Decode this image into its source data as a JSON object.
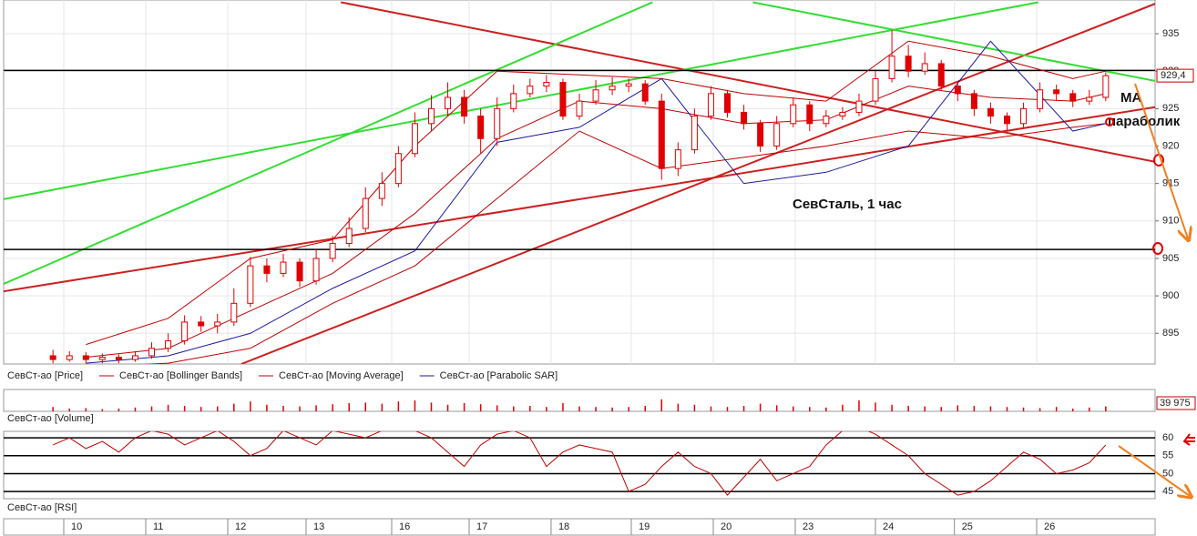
{
  "chart_data": [
    {
      "type": "candlestick",
      "xlim": [
        0,
        140
      ],
      "ylim": [
        890.9,
        939.5
      ],
      "yticks": [
        895,
        900,
        905,
        910,
        915,
        920,
        925,
        930,
        935
      ],
      "xticks": [
        {
          "value": 7.31,
          "label": "10"
        },
        {
          "value": 17.28,
          "label": "11"
        },
        {
          "value": 27.25,
          "label": "12"
        },
        {
          "value": 36.77,
          "label": "13"
        },
        {
          "value": 47.18,
          "label": "16"
        },
        {
          "value": 56.6,
          "label": "17"
        },
        {
          "value": 66.56,
          "label": "18"
        },
        {
          "value": 76.31,
          "label": "19"
        },
        {
          "value": 86.28,
          "label": "20"
        },
        {
          "value": 96.25,
          "label": "23"
        },
        {
          "value": 106.0,
          "label": "24"
        },
        {
          "value": 115.6,
          "label": "25"
        },
        {
          "value": 125.6,
          "label": "26"
        }
      ],
      "grid": true,
      "candles": {
        "name": "СевСт-ао [Price]",
        "color": "#e00000",
        "x": [
          6,
          8,
          10,
          12,
          14,
          16,
          18,
          20,
          22,
          24,
          26,
          28,
          30,
          32,
          34,
          36,
          38,
          40,
          42,
          44,
          46,
          48,
          50,
          52,
          54,
          56,
          58,
          60,
          62,
          64,
          66,
          68,
          70,
          72,
          74,
          76,
          78,
          80,
          82,
          84,
          86,
          88,
          90,
          92,
          94,
          96,
          98,
          100,
          102,
          104,
          106,
          108,
          110,
          112,
          114,
          116,
          118,
          120,
          122,
          124,
          126,
          128,
          130,
          132,
          134
        ],
        "open": [
          892,
          891.5,
          892,
          891.5,
          891.8,
          891.5,
          892,
          893,
          894,
          896.5,
          896,
          896.5,
          899,
          904,
          903,
          904.5,
          902,
          905,
          907,
          909,
          913,
          915,
          919,
          923,
          925,
          926.5,
          924,
          921,
          925,
          927,
          928,
          928.5,
          924,
          926,
          927.5,
          928,
          928.3,
          926,
          917,
          919.5,
          924,
          927,
          924.5,
          923,
          920,
          923,
          925.5,
          923,
          924,
          924.5,
          926,
          929,
          932,
          930,
          931,
          928,
          927,
          925,
          924,
          923,
          925,
          927.5,
          927,
          926,
          926.5
        ],
        "high": [
          892.8,
          892.6,
          892.5,
          892.3,
          892.2,
          892.6,
          893.8,
          895,
          897.4,
          897.3,
          897.6,
          901,
          905.2,
          905,
          905.6,
          905,
          906.2,
          908,
          910.5,
          914.5,
          916.5,
          920,
          924.5,
          926.8,
          928.5,
          927.5,
          925,
          926.5,
          928.2,
          929,
          929.5,
          929,
          927,
          928.8,
          929.2,
          929,
          928.8,
          927,
          920.5,
          925,
          928,
          927.5,
          925.5,
          923.5,
          924,
          926.5,
          926,
          924.8,
          925.2,
          927,
          930,
          935.5,
          933.5,
          932.5,
          931.5,
          928.5,
          927.5,
          925.8,
          924.5,
          925.8,
          928.5,
          928.2,
          927.5,
          927.5,
          929.8
        ],
        "low": [
          891,
          891.2,
          891,
          891,
          891,
          891.2,
          891.6,
          892.5,
          893.5,
          895.2,
          895,
          896,
          898.5,
          901.8,
          902.5,
          901.2,
          901.5,
          904.5,
          906.5,
          908.5,
          912,
          914.5,
          918.5,
          922,
          924,
          923,
          919,
          920,
          924.5,
          926.5,
          927.2,
          923.5,
          923.5,
          925.5,
          926.8,
          927.2,
          925.5,
          915.5,
          916,
          919,
          923.5,
          923.8,
          922.2,
          919.2,
          919.5,
          922.5,
          922,
          922.5,
          923.5,
          924,
          925.5,
          928.5,
          929.2,
          929.5,
          927.5,
          926,
          924,
          923,
          922,
          922.5,
          924.5,
          926,
          925.2,
          925.5,
          926
        ],
        "close": [
          891.5,
          892,
          891.5,
          891.8,
          891.5,
          892,
          893,
          894,
          896.5,
          896,
          896.5,
          899,
          904,
          903,
          904.5,
          902,
          905,
          907,
          909,
          913,
          915,
          919,
          923,
          925,
          926.5,
          924,
          921,
          925,
          927,
          928,
          928.5,
          924,
          926,
          927.5,
          928,
          928.3,
          926,
          917,
          919.5,
          924,
          927,
          924.5,
          923,
          920,
          923,
          925.5,
          923,
          924,
          924.5,
          926,
          929,
          932,
          930,
          931,
          928,
          927,
          925,
          924,
          923,
          925,
          927.5,
          927,
          926,
          926.5,
          929.4
        ]
      },
      "series": [
        {
          "name": "СевСт-ао [Bollinger Bands]",
          "color": "#c00000",
          "x": [
            10,
            20,
            30,
            40,
            50,
            60,
            70,
            80,
            90,
            100,
            110,
            120,
            130,
            134
          ],
          "upper": [
            893.5,
            897,
            905,
            907.5,
            920,
            930,
            929.5,
            929,
            927,
            926,
            934,
            932,
            929,
            930
          ],
          "lower": [
            890.5,
            891,
            893,
            899,
            904,
            913,
            922,
            917,
            918.5,
            920,
            922,
            921,
            922.5,
            923
          ]
        },
        {
          "name": "СевСт-ао [Moving Average]",
          "color": "#c00000",
          "x": [
            10,
            20,
            30,
            40,
            50,
            60,
            70,
            80,
            90,
            100,
            110,
            120,
            130,
            134
          ],
          "values": [
            891.8,
            893,
            898,
            903,
            911,
            921,
            926,
            925,
            923,
            923.5,
            928,
            926.5,
            926,
            927
          ]
        },
        {
          "name": "СевСт-ао [Parabolic SAR]",
          "color": "#1a1aa0",
          "x": [
            10,
            20,
            30,
            40,
            50,
            60,
            70,
            80,
            90,
            100,
            110,
            120,
            130,
            134
          ],
          "values": [
            891,
            892,
            895,
            901,
            906,
            920.5,
            922.5,
            929,
            915,
            916.5,
            920,
            934,
            922,
            923
          ]
        }
      ],
      "trendlines": [
        {
          "color": "#cc2020",
          "x": [
            0,
            140
          ],
          "y": [
            900.6,
            925.2
          ]
        },
        {
          "color": "#cc2020",
          "x": [
            28.9,
            140
          ],
          "y": [
            890.9,
            939
          ]
        },
        {
          "color": "#cc2020",
          "x": [
            41,
            140
          ],
          "y": [
            939.2,
            917.9
          ]
        },
        {
          "color": "#33dd33",
          "x": [
            0,
            78.9
          ],
          "y": [
            901.6,
            939.2
          ]
        },
        {
          "color": "#33dd33",
          "x": [
            0,
            125.8
          ],
          "y": [
            912.9,
            939.2
          ]
        },
        {
          "color": "#33dd33",
          "x": [
            91.1,
            140
          ],
          "y": [
            939.2,
            928.7
          ]
        }
      ],
      "hlines": [
        930.1,
        906.2
      ],
      "hline_color": "#000000",
      "last_price": {
        "value": 929.4,
        "label": "929,4"
      },
      "annotations": [
        "СевСталь,   1 час",
        "МА",
        "параболик"
      ]
    },
    {
      "type": "volume",
      "title": "СевСт-ао [Volume]",
      "color": "#e00000",
      "ylim": [
        0,
        39975
      ],
      "yticks": [
        {
          "value": 39975,
          "label": "39 975"
        }
      ],
      "values": [
        8000,
        5000,
        6000,
        4000,
        5000,
        7000,
        9000,
        12000,
        10000,
        8000,
        9000,
        14000,
        18000,
        12000,
        10000,
        9000,
        11000,
        13000,
        15000,
        16000,
        14000,
        18000,
        20000,
        16000,
        12000,
        15000,
        13000,
        11000,
        9000,
        10000,
        8000,
        15000,
        9000,
        8000,
        7000,
        8000,
        10000,
        22000,
        14000,
        12000,
        9000,
        8000,
        10000,
        14000,
        11000,
        9000,
        8000,
        7000,
        12000,
        20000,
        16000,
        12000,
        10000,
        9000,
        8000,
        11000,
        10000,
        9000,
        8000,
        7000,
        6000,
        8000,
        5000,
        7000,
        9000
      ]
    },
    {
      "type": "rsi",
      "title": "СевСт-ао [RSI]",
      "color": "#c00000",
      "ylim": [
        43,
        61.8
      ],
      "yticks": [
        45,
        50,
        55,
        60
      ],
      "grid": true,
      "values": [
        58,
        60,
        57,
        59,
        56,
        60,
        62,
        61,
        58,
        60,
        62,
        59,
        55,
        57,
        62,
        60,
        58,
        62,
        61,
        60,
        62,
        63,
        62,
        60,
        56,
        52,
        58,
        61,
        62,
        60,
        52,
        56,
        58,
        57,
        56,
        45,
        47,
        52,
        56,
        52,
        50,
        44,
        49,
        54,
        48,
        50,
        52,
        58,
        62,
        63,
        61,
        58,
        55,
        50,
        47,
        44,
        45,
        48,
        52,
        56,
        54,
        50,
        51,
        53,
        58
      ]
    }
  ]
}
